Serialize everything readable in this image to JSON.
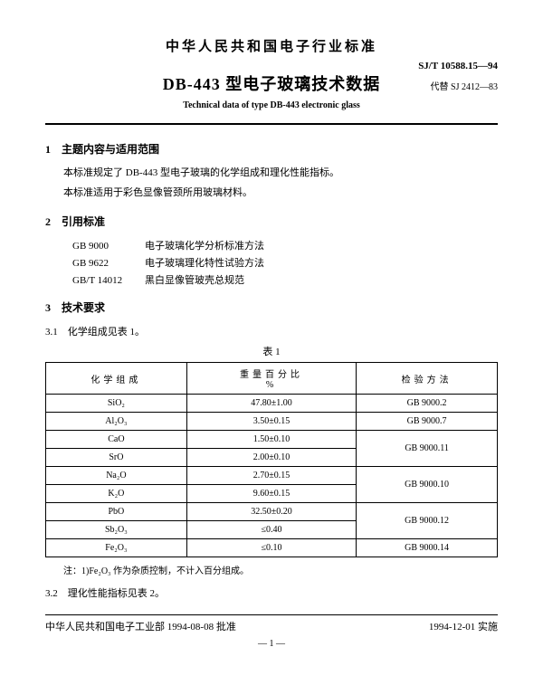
{
  "header": {
    "org_title": "中华人民共和国电子行业标准",
    "std_code": "SJ/T 10588.15—94",
    "main_title": "DB-443 型电子玻璃技术数据",
    "replace_code": "代替 SJ 2412—83",
    "en_title": "Technical data of type DB-443 electronic glass"
  },
  "sections": {
    "s1": {
      "num": "1",
      "title": "主题内容与适用范围",
      "p1": "本标准规定了 DB-443 型电子玻璃的化学组成和理化性能指标。",
      "p2": "本标准适用于彩色显像管颈所用玻璃材料。"
    },
    "s2": {
      "num": "2",
      "title": "引用标准",
      "refs": [
        {
          "code": "GB 9000",
          "name": "电子玻璃化学分析标准方法"
        },
        {
          "code": "GB 9622",
          "name": "电子玻璃理化特性试验方法"
        },
        {
          "code": "GB/T 14012",
          "name": "黑白显像管玻壳总规范"
        }
      ]
    },
    "s3": {
      "num": "3",
      "title": "技术要求",
      "s31": "3.1　化学组成见表 1。",
      "table_caption": "表 1",
      "s32": "3.2　理化性能指标见表 2。"
    }
  },
  "table1": {
    "headers": {
      "c1": "化学组成",
      "c2": "重量百分比\n%",
      "c3": "检验方法"
    },
    "rows": [
      {
        "comp": "SiO₂",
        "pct": "47.80±1.00",
        "method": "GB 9000.2",
        "rowspan": 1
      },
      {
        "comp": "Al₂O₃",
        "pct": "3.50±0.15",
        "method": "GB 9000.7",
        "rowspan": 1
      },
      {
        "comp": "CaO",
        "pct": "1.50±0.10",
        "method": "GB 9000.11",
        "rowspan": 2
      },
      {
        "comp": "SrO",
        "pct": "2.00±0.10"
      },
      {
        "comp": "Na₂O",
        "pct": "2.70±0.15",
        "method": "GB 9000.10",
        "rowspan": 2
      },
      {
        "comp": "K₂O",
        "pct": "9.60±0.15"
      },
      {
        "comp": "PbO",
        "pct": "32.50±0.20",
        "method": "GB 9000.12",
        "rowspan": 2
      },
      {
        "comp": "Sb₂O₃",
        "pct": "≤0.40"
      },
      {
        "comp": "Fe₂O₃",
        "pct": "≤0.10",
        "method": "GB 9000.14",
        "rowspan": 1
      }
    ]
  },
  "note": "注：1)Fe₂O₃ 作为杂质控制，不计入百分组成。",
  "footer": {
    "left": "中华人民共和国电子工业部 1994-08-08 批准",
    "right": "1994-12-01 实施",
    "page": "— 1 —"
  }
}
